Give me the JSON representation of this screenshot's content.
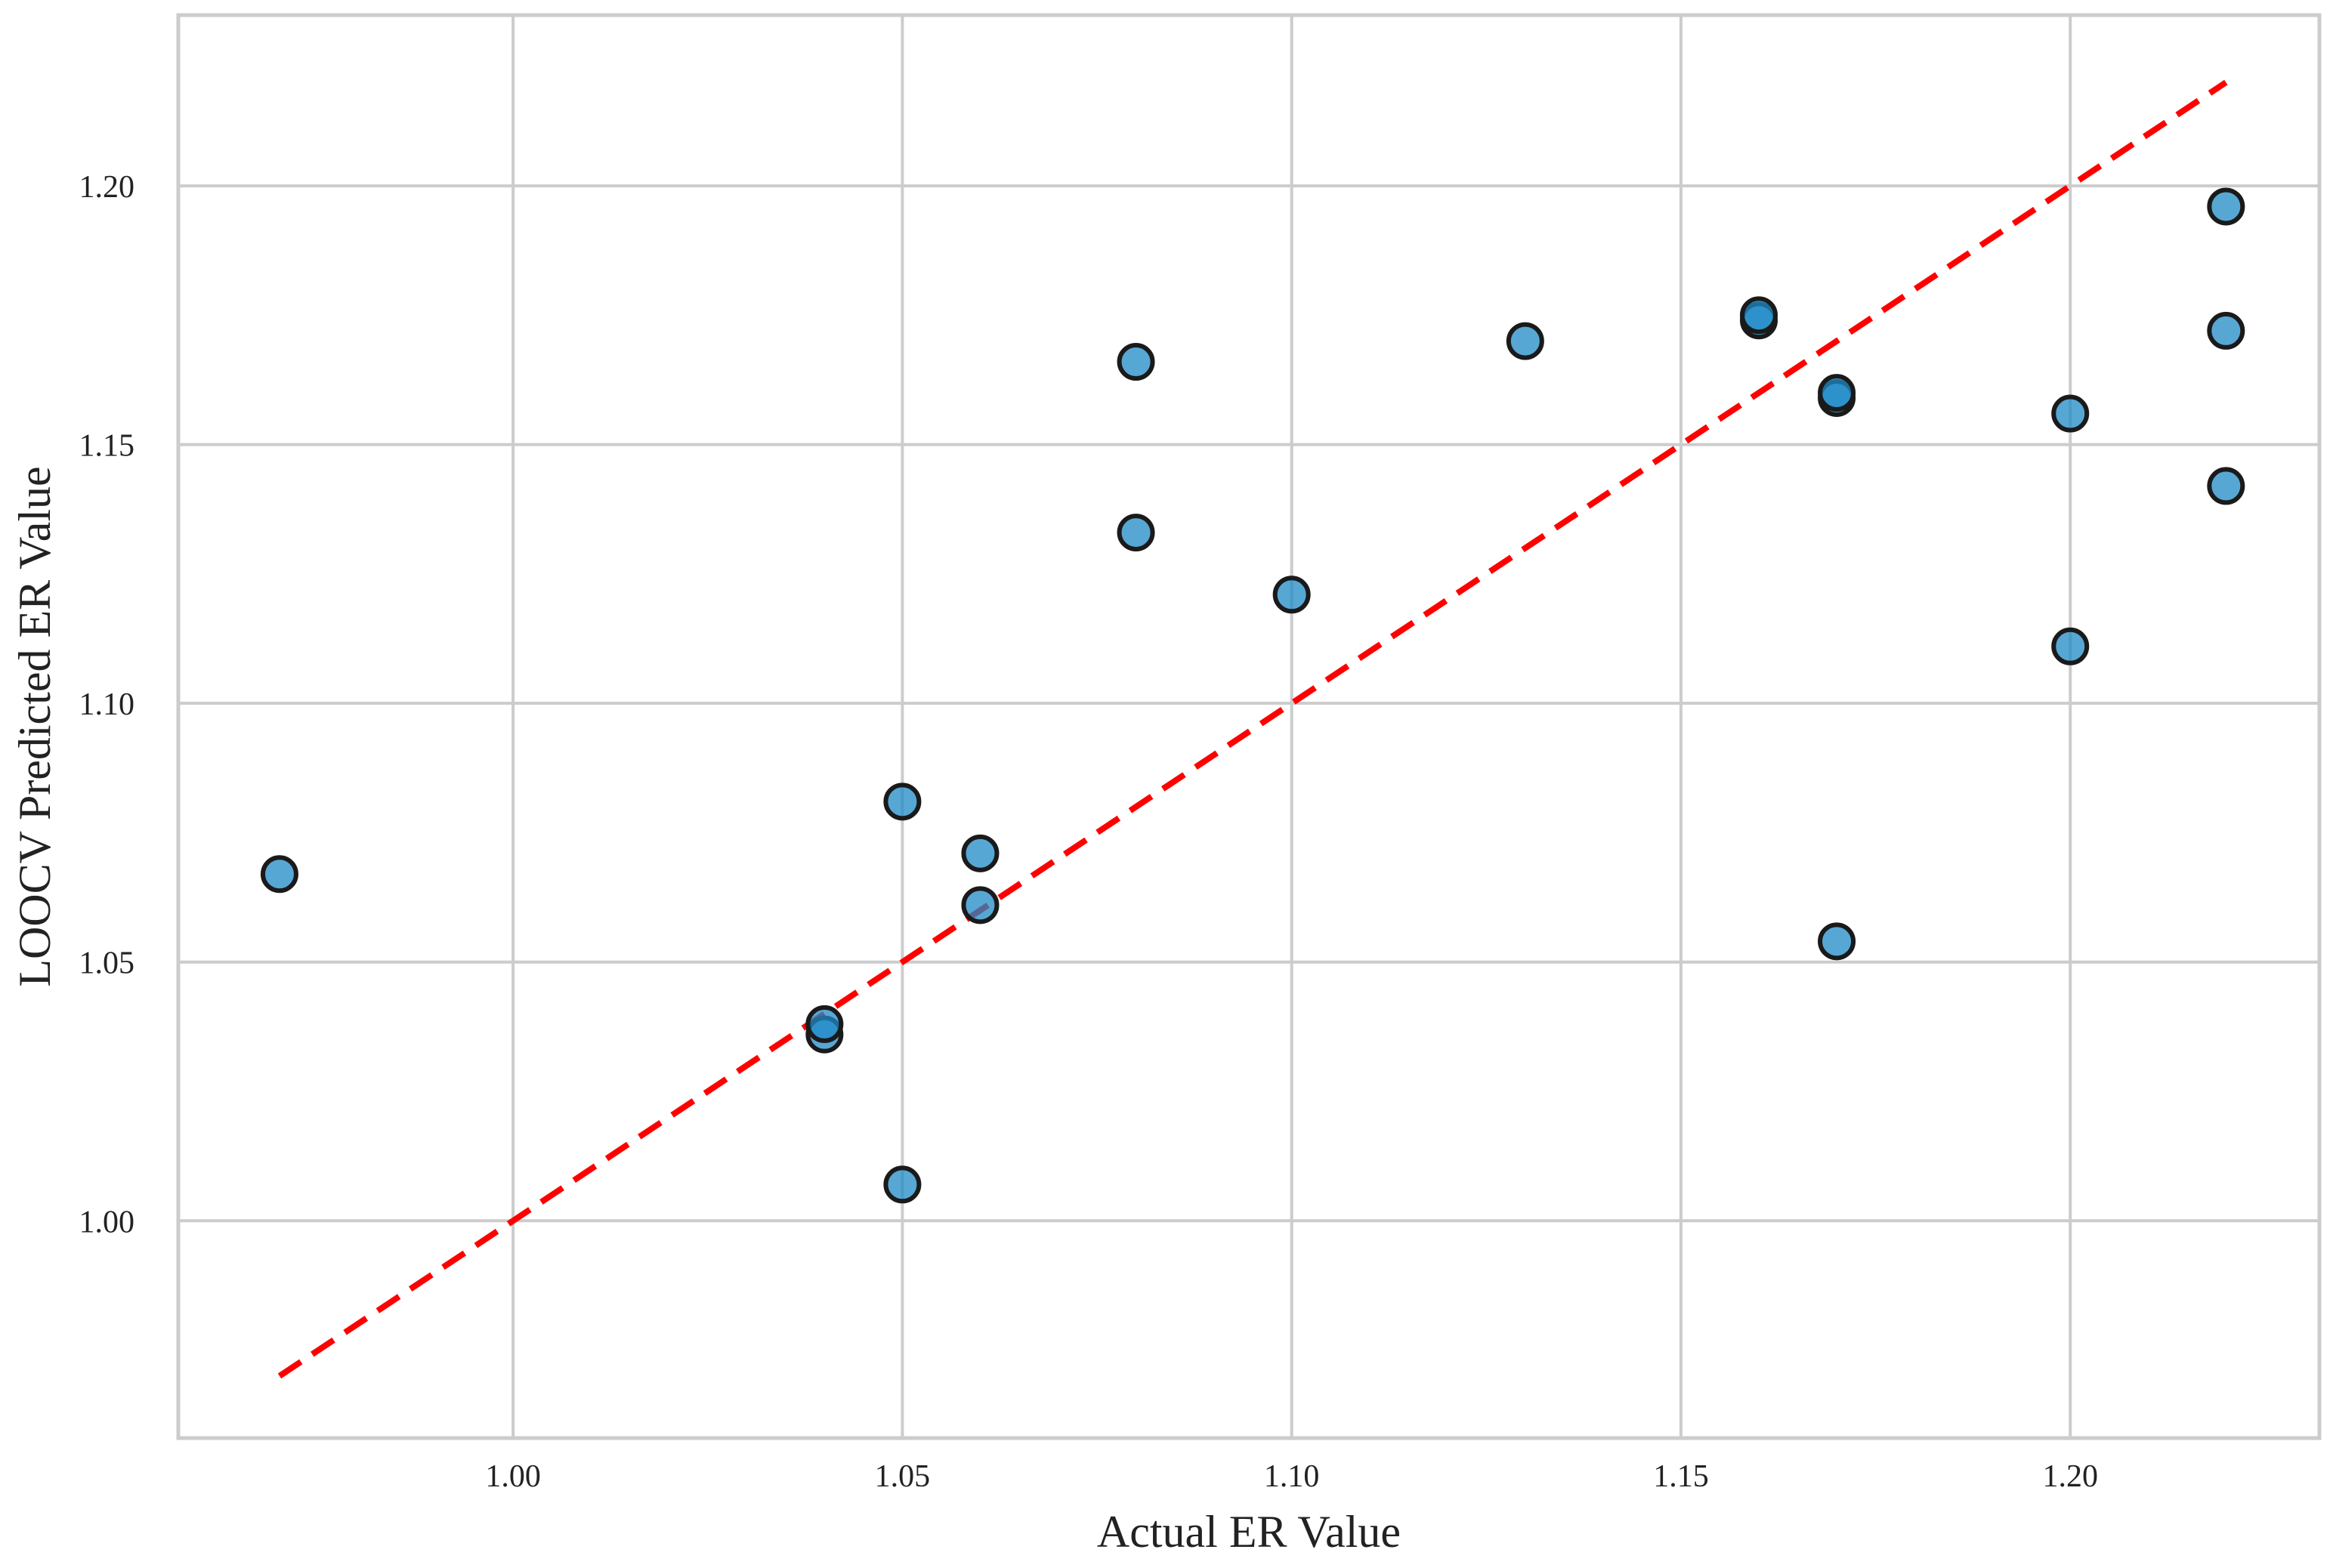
{
  "chart_data": {
    "type": "scatter",
    "title": "",
    "xlabel": "Actual ER Value",
    "ylabel": "LOOCV Predicted ER Value",
    "xlim": [
      0.957,
      1.232
    ],
    "ylim": [
      0.958,
      1.233
    ],
    "x_ticks": [
      1.0,
      1.05,
      1.1,
      1.15,
      1.2
    ],
    "y_ticks": [
      1.0,
      1.05,
      1.1,
      1.15,
      1.2
    ],
    "x_tick_labels": [
      "1.00",
      "1.05",
      "1.10",
      "1.15",
      "1.20"
    ],
    "y_tick_labels": [
      "1.00",
      "1.05",
      "1.10",
      "1.15",
      "1.20"
    ],
    "grid": true,
    "point_color": "#1f8ac7",
    "line_color": "#ff0000",
    "reference_line": {
      "x": [
        0.97,
        1.22
      ],
      "y": [
        0.97,
        1.22
      ],
      "style": "dashed"
    },
    "points": [
      {
        "x": 0.97,
        "y": 1.067
      },
      {
        "x": 1.04,
        "y": 1.036
      },
      {
        "x": 1.04,
        "y": 1.038
      },
      {
        "x": 1.05,
        "y": 1.081
      },
      {
        "x": 1.05,
        "y": 1.007
      },
      {
        "x": 1.06,
        "y": 1.071
      },
      {
        "x": 1.06,
        "y": 1.061
      },
      {
        "x": 1.08,
        "y": 1.166
      },
      {
        "x": 1.08,
        "y": 1.133
      },
      {
        "x": 1.1,
        "y": 1.121
      },
      {
        "x": 1.13,
        "y": 1.17
      },
      {
        "x": 1.16,
        "y": 1.174
      },
      {
        "x": 1.16,
        "y": 1.175
      },
      {
        "x": 1.17,
        "y": 1.159
      },
      {
        "x": 1.17,
        "y": 1.16
      },
      {
        "x": 1.17,
        "y": 1.054
      },
      {
        "x": 1.2,
        "y": 1.156
      },
      {
        "x": 1.2,
        "y": 1.111
      },
      {
        "x": 1.22,
        "y": 1.196
      },
      {
        "x": 1.22,
        "y": 1.172
      },
      {
        "x": 1.22,
        "y": 1.142
      }
    ]
  }
}
